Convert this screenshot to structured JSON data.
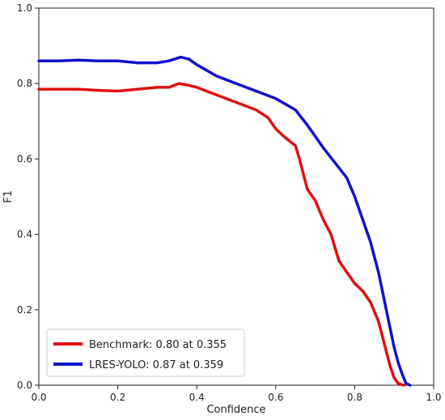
{
  "chart_data": {
    "type": "line",
    "title": "",
    "xlabel": "Confidence",
    "ylabel": "F1",
    "xlim": [
      0,
      1
    ],
    "ylim": [
      0,
      1
    ],
    "xticks": [
      "0.0",
      "0.2",
      "0.4",
      "0.6",
      "0.8",
      "1.0"
    ],
    "yticks": [
      "0.0",
      "0.2",
      "0.4",
      "0.6",
      "0.8",
      "1.0"
    ],
    "grid": false,
    "legend_position": "bottom-left",
    "series": [
      {
        "name": "Benchmark: 0.80 at 0.355",
        "color": "#dd1111",
        "x": [
          0,
          0.05,
          0.1,
          0.15,
          0.2,
          0.25,
          0.3,
          0.33,
          0.355,
          0.38,
          0.4,
          0.45,
          0.5,
          0.55,
          0.58,
          0.6,
          0.62,
          0.65,
          0.66,
          0.68,
          0.7,
          0.72,
          0.74,
          0.76,
          0.78,
          0.8,
          0.82,
          0.84,
          0.86,
          0.87,
          0.88,
          0.89,
          0.9,
          0.91,
          0.92,
          0.925
        ],
        "y": [
          0.785,
          0.785,
          0.785,
          0.782,
          0.78,
          0.785,
          0.79,
          0.79,
          0.8,
          0.795,
          0.79,
          0.77,
          0.75,
          0.73,
          0.71,
          0.68,
          0.66,
          0.635,
          0.6,
          0.52,
          0.49,
          0.44,
          0.4,
          0.33,
          0.3,
          0.27,
          0.25,
          0.22,
          0.17,
          0.13,
          0.09,
          0.05,
          0.02,
          0.005,
          0.001,
          0
        ]
      },
      {
        "name": "LRES-YOLO: 0.87 at 0.359",
        "color": "#1111cc",
        "x": [
          0,
          0.05,
          0.1,
          0.15,
          0.2,
          0.25,
          0.3,
          0.33,
          0.359,
          0.38,
          0.4,
          0.45,
          0.5,
          0.55,
          0.6,
          0.65,
          0.68,
          0.7,
          0.72,
          0.75,
          0.78,
          0.8,
          0.82,
          0.84,
          0.86,
          0.87,
          0.88,
          0.89,
          0.9,
          0.91,
          0.92,
          0.93,
          0.94
        ],
        "y": [
          0.86,
          0.86,
          0.862,
          0.86,
          0.86,
          0.855,
          0.855,
          0.86,
          0.87,
          0.865,
          0.85,
          0.82,
          0.8,
          0.78,
          0.76,
          0.73,
          0.69,
          0.66,
          0.63,
          0.59,
          0.55,
          0.5,
          0.44,
          0.38,
          0.3,
          0.25,
          0.2,
          0.15,
          0.1,
          0.06,
          0.03,
          0.005,
          0
        ]
      }
    ]
  }
}
